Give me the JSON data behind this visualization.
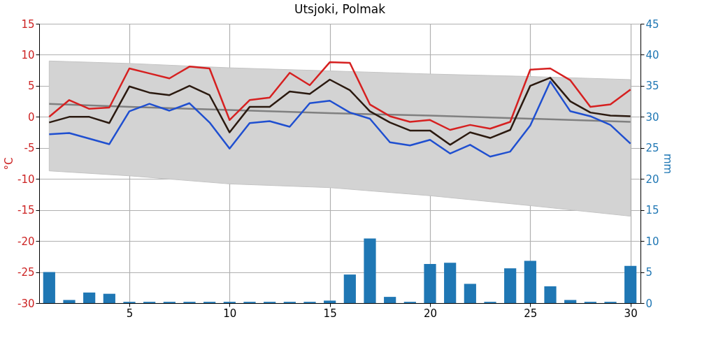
{
  "chart_data": {
    "type": "line",
    "title": "Utsjoki, Polmak",
    "ylabel": "°C",
    "y2label": "mm",
    "x": [
      1,
      2,
      3,
      4,
      5,
      6,
      7,
      8,
      9,
      10,
      11,
      12,
      13,
      14,
      15,
      16,
      17,
      18,
      19,
      20,
      21,
      22,
      23,
      24,
      25,
      26,
      27,
      28,
      29,
      30
    ],
    "series": [
      {
        "type": "bar",
        "axis": "y2",
        "color": "#1f77b4",
        "values": [
          5.0,
          0.5,
          1.7,
          1.5,
          0.2,
          0.2,
          0.2,
          0.2,
          0.2,
          0.2,
          0.2,
          0.2,
          0.2,
          0.2,
          0.4,
          4.6,
          10.4,
          1.0,
          0.2,
          6.3,
          6.5,
          3.1,
          0.2,
          5.6,
          6.8,
          2.7,
          0.5,
          0.2,
          0.2,
          6.0
        ]
      },
      {
        "color": "#808080",
        "x": [
          1,
          5,
          10,
          15,
          20,
          25,
          30
        ],
        "values": [
          2.1,
          1.6,
          1.1,
          0.6,
          0.2,
          -0.3,
          -0.8
        ],
        "lower": [
          -8.7,
          -9.5,
          -10.8,
          -11.4,
          -12.7,
          -14.3,
          -16.0
        ],
        "upper": [
          9.0,
          8.6,
          7.9,
          7.4,
          6.9,
          6.5,
          6.0
        ]
      },
      {
        "color": "#d62020",
        "values": [
          0.0,
          2.7,
          1.3,
          1.5,
          7.8,
          7.0,
          6.2,
          8.1,
          7.8,
          -0.5,
          2.7,
          3.1,
          7.1,
          5.1,
          8.8,
          8.7,
          2.0,
          0.1,
          -0.8,
          -0.5,
          -2.1,
          -1.3,
          -1.9,
          -0.8,
          7.6,
          7.8,
          5.9,
          1.6,
          2.0,
          4.4
        ]
      },
      {
        "color": "#2b1a10",
        "values": [
          -0.9,
          0.0,
          0.0,
          -1.0,
          4.9,
          3.9,
          3.5,
          5.0,
          3.5,
          -2.5,
          1.6,
          1.6,
          4.1,
          3.7,
          6.0,
          4.3,
          0.9,
          -0.9,
          -2.2,
          -2.2,
          -4.5,
          -2.5,
          -3.4,
          -2.1,
          5.0,
          6.3,
          2.5,
          0.7,
          0.2,
          0.1
        ]
      },
      {
        "color": "#1f4fd0",
        "values": [
          -2.8,
          -2.6,
          -3.5,
          -4.4,
          0.9,
          2.1,
          1.0,
          2.2,
          -0.9,
          -5.1,
          -1.0,
          -0.7,
          -1.6,
          2.2,
          2.6,
          0.7,
          -0.3,
          -4.1,
          -4.6,
          -3.7,
          -5.9,
          -4.5,
          -6.4,
          -5.6,
          -1.4,
          5.7,
          0.9,
          0.1,
          -1.3,
          -4.3
        ]
      }
    ],
    "xlim": [
      0.5,
      30.5
    ],
    "xticks": [
      5,
      10,
      15,
      20,
      25,
      30
    ],
    "ylim": [
      -30,
      15
    ],
    "yticks": [
      -30,
      -25,
      -20,
      -15,
      -10,
      -5,
      0,
      5,
      10,
      15
    ],
    "y2lim": [
      0,
      45
    ],
    "y2ticks": [
      0,
      5,
      10,
      15,
      20,
      25,
      30,
      35,
      40,
      45
    ],
    "grid": true
  }
}
